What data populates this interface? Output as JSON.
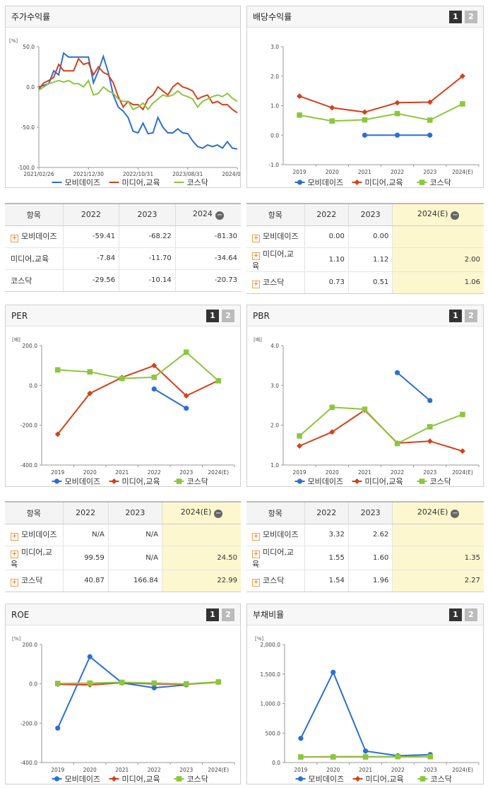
{
  "colors": {
    "mobi": "#2b6fd6",
    "media": "#d4421a",
    "kosdaq": "#8cc63e"
  },
  "legend": [
    "모비데이즈",
    "미디어,교육",
    "코스닥"
  ],
  "panels": {
    "stock": {
      "title": "주가수익률"
    },
    "dividend": {
      "title": "배당수익률",
      "p1": "1",
      "p2": "2"
    },
    "per": {
      "title": "PER",
      "p1": "1",
      "p2": "2"
    },
    "pbr": {
      "title": "PBR",
      "p1": "1",
      "p2": "2"
    },
    "roe": {
      "title": "ROE",
      "p1": "1",
      "p2": "2"
    },
    "debt": {
      "title": "부채비율",
      "p1": "1",
      "p2": "2"
    }
  },
  "tables": {
    "stock": {
      "headers": [
        "항목",
        "2022",
        "2023",
        "2024"
      ],
      "rows": [
        {
          "label": "모비데이즈",
          "plus": true,
          "v": [
            "-59.41",
            "-68.22",
            "-81.30"
          ]
        },
        {
          "label": "미디어,교육",
          "plus": false,
          "v": [
            "-7.84",
            "-11.70",
            "-34.64"
          ]
        },
        {
          "label": "코스닥",
          "plus": false,
          "v": [
            "-29.56",
            "-10.14",
            "-20.73"
          ]
        }
      ]
    },
    "dividend": {
      "headers": [
        "항목",
        "2022",
        "2023",
        "2024(E)"
      ],
      "rows": [
        {
          "label": "모비데이즈",
          "plus": true,
          "v": [
            "0.00",
            "0.00",
            ""
          ]
        },
        {
          "label": "미디어,교육",
          "plus": true,
          "v": [
            "1.10",
            "1.12",
            "2.00"
          ]
        },
        {
          "label": "코스닥",
          "plus": true,
          "v": [
            "0.73",
            "0.51",
            "1.06"
          ]
        }
      ]
    },
    "per": {
      "headers": [
        "항목",
        "2022",
        "2023",
        "2024(E)"
      ],
      "rows": [
        {
          "label": "모비데이즈",
          "plus": true,
          "v": [
            "N/A",
            "N/A",
            ""
          ]
        },
        {
          "label": "미디어,교육",
          "plus": true,
          "v": [
            "99.59",
            "N/A",
            "24.50"
          ]
        },
        {
          "label": "코스닥",
          "plus": true,
          "v": [
            "40.87",
            "166.84",
            "22.99"
          ]
        }
      ]
    },
    "pbr": {
      "headers": [
        "항목",
        "2022",
        "2023",
        "2024(E)"
      ],
      "rows": [
        {
          "label": "모비데이즈",
          "plus": true,
          "v": [
            "3.32",
            "2.62",
            ""
          ]
        },
        {
          "label": "미디어,교육",
          "plus": true,
          "v": [
            "1.55",
            "1.60",
            "1.35"
          ]
        },
        {
          "label": "코스닥",
          "plus": true,
          "v": [
            "1.54",
            "1.96",
            "2.27"
          ]
        }
      ]
    }
  },
  "chart_data": [
    {
      "id": "stock",
      "type": "line",
      "ylabel": "[%]",
      "yticks": [
        "50.0",
        "0.0",
        "-50.0",
        "-100.0"
      ],
      "ylim": [
        -100,
        50
      ],
      "xticks": [
        "2021/02/26",
        "2021/12/30",
        "2022/10/31",
        "2023/08/31",
        "2024/06/28"
      ],
      "x": [
        "2021/02/26",
        "2021/03/31",
        "2021/04/30",
        "2021/05/31",
        "2021/06/30",
        "2021/07/30",
        "2021/08/31",
        "2021/09/30",
        "2021/10/29",
        "2021/11/30",
        "2021/12/30",
        "2022/01/28",
        "2022/02/28",
        "2022/03/31",
        "2022/04/29",
        "2022/05/31",
        "2022/06/30",
        "2022/07/29",
        "2022/08/31",
        "2022/09/30",
        "2022/10/31",
        "2022/11/30",
        "2022/12/29",
        "2023/01/31",
        "2023/02/28",
        "2023/03/31",
        "2023/04/28",
        "2023/05/31",
        "2023/06/30",
        "2023/07/31",
        "2023/08/31",
        "2023/09/27",
        "2023/10/31",
        "2023/11/30",
        "2023/12/28",
        "2024/01/31",
        "2024/02/29",
        "2024/03/29",
        "2024/04/30",
        "2024/05/31",
        "2024/06/28"
      ],
      "series": [
        {
          "name": "모비데이즈",
          "color": "#2b6fd6",
          "values": [
            0,
            2,
            4,
            20,
            15,
            42,
            37,
            37,
            37,
            37,
            37,
            5,
            20,
            38,
            18,
            -10,
            -25,
            -30,
            -38,
            -55,
            -57,
            -45,
            -58,
            -57,
            -38,
            -50,
            -57,
            -57,
            -52,
            -57,
            -58,
            -67,
            -74,
            -76,
            -72,
            -74,
            -72,
            -76,
            -68,
            -76,
            -77
          ]
        },
        {
          "name": "미디어,교육",
          "color": "#d4421a",
          "values": [
            -3,
            5,
            8,
            12,
            28,
            20,
            20,
            20,
            35,
            28,
            30,
            15,
            25,
            18,
            15,
            5,
            -12,
            -25,
            -18,
            -22,
            -22,
            -28,
            -15,
            -10,
            0,
            -5,
            -10,
            0,
            5,
            0,
            -2,
            -5,
            -15,
            -12,
            -10,
            -20,
            -18,
            -22,
            -22,
            -28,
            -32
          ]
        },
        {
          "name": "코스닥",
          "color": "#8cc63e",
          "values": [
            -4,
            0,
            4,
            6,
            8,
            6,
            8,
            4,
            4,
            0,
            8,
            -10,
            -8,
            0,
            -5,
            -8,
            -15,
            -18,
            -18,
            -28,
            -25,
            -20,
            -28,
            -20,
            -15,
            -10,
            -12,
            -10,
            -5,
            -10,
            -12,
            -15,
            -25,
            -18,
            -15,
            -12,
            -10,
            -12,
            -8,
            -14,
            -18
          ]
        }
      ]
    },
    {
      "id": "dividend",
      "type": "line",
      "ylabel": "",
      "yticks": [
        "3.0",
        "2.0",
        "1.0",
        "0.0",
        "-1.0"
      ],
      "ylim": [
        -1,
        3
      ],
      "categories": [
        "2019",
        "2020",
        "2021",
        "2022",
        "2023",
        "2024(E)"
      ],
      "series": [
        {
          "name": "모비데이즈",
          "color": "#2b6fd6",
          "marker": "circle",
          "values": [
            null,
            null,
            0.0,
            0.0,
            0.0,
            null
          ]
        },
        {
          "name": "미디어,교육",
          "color": "#d4421a",
          "marker": "diamond",
          "values": [
            1.32,
            0.93,
            0.78,
            1.1,
            1.12,
            2.0
          ]
        },
        {
          "name": "코스닥",
          "color": "#8cc63e",
          "marker": "square",
          "values": [
            0.68,
            0.48,
            0.52,
            0.73,
            0.51,
            1.06
          ]
        }
      ]
    },
    {
      "id": "per",
      "type": "line",
      "ylabel": "[배]",
      "yticks": [
        "200.0",
        "0.0",
        "-200.0",
        "-400.0"
      ],
      "ylim": [
        -400,
        200
      ],
      "categories": [
        "2019",
        "2020",
        "2021",
        "2022",
        "2023",
        "2024(E)"
      ],
      "series": [
        {
          "name": "모비데이즈",
          "color": "#2b6fd6",
          "marker": "circle",
          "values": [
            null,
            null,
            null,
            -18,
            -115,
            null
          ]
        },
        {
          "name": "미디어,교육",
          "color": "#d4421a",
          "marker": "diamond",
          "values": [
            -245,
            -40,
            40,
            99.59,
            -52,
            24.5
          ]
        },
        {
          "name": "코스닥",
          "color": "#8cc63e",
          "marker": "square",
          "values": [
            78,
            68,
            35,
            40.87,
            166.84,
            22.99
          ]
        }
      ]
    },
    {
      "id": "pbr",
      "type": "line",
      "ylabel": "[배]",
      "yticks": [
        "4.0",
        "3.0",
        "2.0",
        "1.0"
      ],
      "ylim": [
        1,
        4
      ],
      "categories": [
        "2019",
        "2020",
        "2021",
        "2022",
        "2023",
        "2024(E)"
      ],
      "series": [
        {
          "name": "모비데이즈",
          "color": "#2b6fd6",
          "marker": "circle",
          "values": [
            null,
            null,
            null,
            3.32,
            2.62,
            null
          ]
        },
        {
          "name": "미디어,교육",
          "color": "#d4421a",
          "marker": "diamond",
          "values": [
            1.48,
            1.83,
            2.38,
            1.55,
            1.6,
            1.35
          ]
        },
        {
          "name": "코스닥",
          "color": "#8cc63e",
          "marker": "square",
          "values": [
            1.73,
            2.45,
            2.4,
            1.54,
            1.96,
            2.27
          ]
        }
      ]
    },
    {
      "id": "roe",
      "type": "line",
      "ylabel": "[%]",
      "yticks": [
        "200.0",
        "0.0",
        "-200.0",
        "-400.0"
      ],
      "ylim": [
        -400,
        200
      ],
      "categories": [
        "2019",
        "2020",
        "2021",
        "2022",
        "2023",
        "2024(E)"
      ],
      "series": [
        {
          "name": "모비데이즈",
          "color": "#2b6fd6",
          "marker": "circle",
          "values": [
            -225,
            138,
            5,
            -20,
            -5,
            null
          ]
        },
        {
          "name": "미디어,교육",
          "color": "#d4421a",
          "marker": "diamond",
          "values": [
            -2,
            -5,
            6,
            0,
            -2,
            8
          ]
        },
        {
          "name": "코스닥",
          "color": "#8cc63e",
          "marker": "square",
          "values": [
            2,
            4,
            8,
            4,
            0,
            10
          ]
        }
      ]
    },
    {
      "id": "debt",
      "type": "line",
      "ylabel": "[%]",
      "yticks": [
        "2,000.0",
        "1,500.0",
        "1,000.0",
        "500.0",
        "0.0"
      ],
      "ylim": [
        0,
        2000
      ],
      "categories": [
        "2019",
        "2020",
        "2021",
        "2022",
        "2023",
        "2024(E)"
      ],
      "series": [
        {
          "name": "모비데이즈",
          "color": "#2b6fd6",
          "marker": "circle",
          "values": [
            410,
            1530,
            195,
            115,
            135,
            null
          ]
        },
        {
          "name": "미디어,교육",
          "color": "#d4421a",
          "marker": "diamond",
          "values": [
            95,
            100,
            100,
            100,
            100,
            null
          ]
        },
        {
          "name": "코스닥",
          "color": "#8cc63e",
          "marker": "square",
          "values": [
            95,
            95,
            95,
            100,
            100,
            null
          ]
        }
      ]
    }
  ]
}
